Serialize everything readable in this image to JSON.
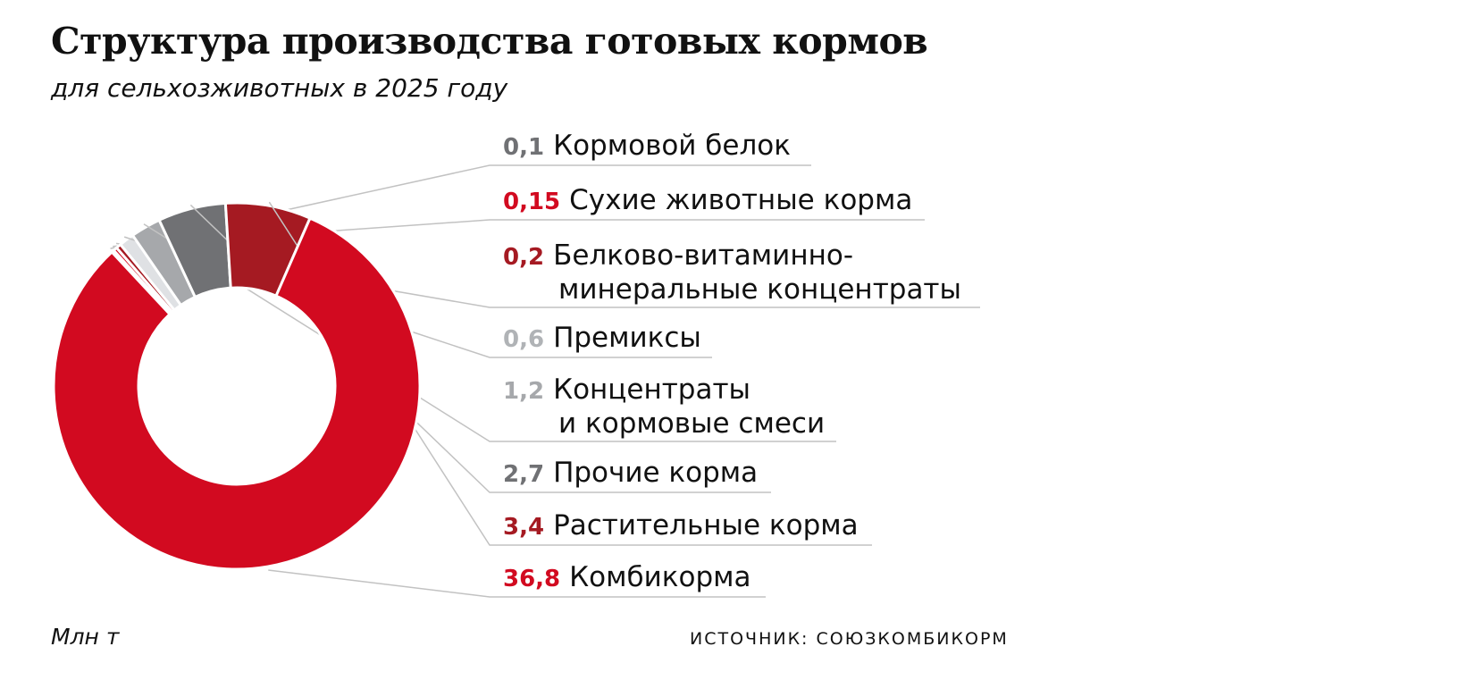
{
  "title": "Структура производства готовых кормов",
  "subtitle": "для сельхозживотных в 2025 году",
  "unit": "Млн т",
  "source": "ИСТОЧНИК: СОЮЗКОМБИКОРМ",
  "colors": {
    "red": "#d20a20",
    "dark_red": "#a51a22",
    "dark_gray": "#707174",
    "gray": "#a6a8ab",
    "light_gray": "#dfe1e4",
    "separator": "#ffffff",
    "leader": "#c2c2c2"
  },
  "chart_data": {
    "type": "pie",
    "style": "donut",
    "unit": "Млн т",
    "slices": [
      {
        "label": "Кормовой белок",
        "label_lines": [
          "Кормовой белок"
        ],
        "value": 0.1,
        "value_text": "0,1",
        "color": "#707174",
        "value_color": "#707174"
      },
      {
        "label": "Сухие животные корма",
        "label_lines": [
          "Сухие животные корма"
        ],
        "value": 0.15,
        "value_text": "0,15",
        "color": "#d20a20",
        "value_color": "#d20a20"
      },
      {
        "label": "Белково-витаминно-минеральные концентраты",
        "label_lines": [
          "Белково-витаминно-",
          "минеральные концентраты"
        ],
        "value": 0.2,
        "value_text": "0,2",
        "color": "#a51a22",
        "value_color": "#a51a22"
      },
      {
        "label": "Премиксы",
        "label_lines": [
          "Премиксы"
        ],
        "value": 0.6,
        "value_text": "0,6",
        "color": "#dfe1e4",
        "value_color": "#b0b3b6"
      },
      {
        "label": "Концентраты и кормовые смеси",
        "label_lines": [
          "Концентраты",
          "и кормовые смеси"
        ],
        "value": 1.2,
        "value_text": "1,2",
        "color": "#a6a8ab",
        "value_color": "#a6a8ab"
      },
      {
        "label": "Прочие корма",
        "label_lines": [
          "Прочие корма"
        ],
        "value": 2.7,
        "value_text": "2,7",
        "color": "#707174",
        "value_color": "#707174"
      },
      {
        "label": "Растительные корма",
        "label_lines": [
          "Растительные корма"
        ],
        "value": 3.4,
        "value_text": "3,4",
        "color": "#a51a22",
        "value_color": "#a51a22"
      },
      {
        "label": "Комбикорма",
        "label_lines": [
          "Комбикорма"
        ],
        "value": 36.8,
        "value_text": "36,8",
        "color": "#d20a20",
        "value_color": "#d20a20"
      }
    ]
  }
}
